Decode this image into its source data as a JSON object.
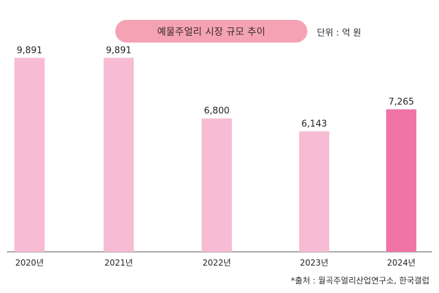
{
  "header": {
    "title": "예물주얼리 시장 규모 추이",
    "unit": "단위 : 억 원"
  },
  "footer": {
    "source": "*출처 : 월곡주얼리산업연구소, 한국갤럽"
  },
  "colors": {
    "bar_default": "#f7bcd4",
    "bar_highlight": "#f075a6",
    "title_bg": "#f5a3b4",
    "axis": "#555555"
  },
  "chart_data": {
    "type": "bar",
    "title": "예물주얼리 시장 규모 추이",
    "categories": [
      "2020년",
      "2021년",
      "2022년",
      "2023년",
      "2024년"
    ],
    "values": [
      9891,
      9891,
      6800,
      6143,
      7265
    ],
    "value_labels": [
      "9,891",
      "9,891",
      "6,800",
      "6,143",
      "7,265"
    ],
    "highlight_index": 4,
    "ylim": [
      0,
      10600
    ],
    "grid": false,
    "unit": "억 원"
  }
}
